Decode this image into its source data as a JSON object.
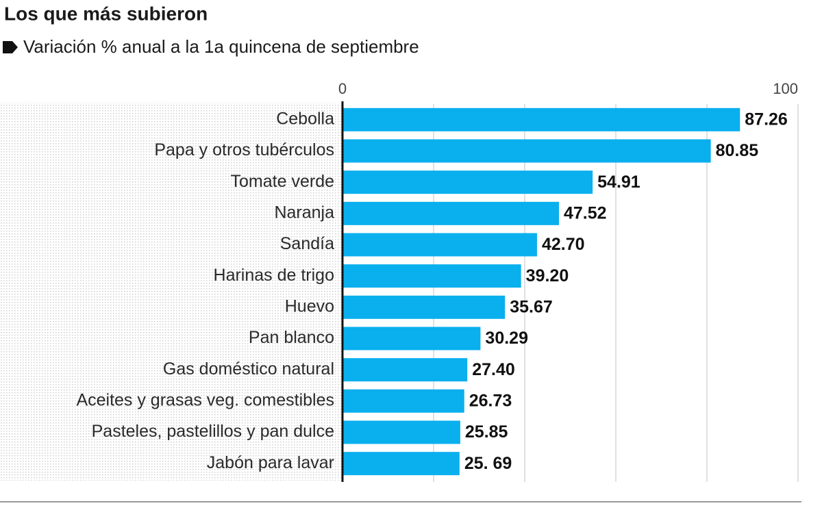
{
  "chart_data": {
    "type": "barh",
    "title": "Los que más subieron",
    "subtitle": "Variación % anual a la 1a quincena de septiembre",
    "categories": [
      "Cebolla",
      "Papa y otros tubérculos",
      "Tomate verde",
      "Naranja",
      "Sandía",
      "Harinas de trigo",
      "Huevo",
      "Pan blanco",
      "Gas doméstico natural",
      "Aceites y grasas veg. comestibles",
      "Pasteles, pastelillos y pan dulce",
      "Jabón para lavar"
    ],
    "values": [
      87.26,
      80.85,
      54.91,
      47.52,
      42.7,
      39.2,
      35.67,
      30.29,
      27.4,
      26.73,
      25.85,
      25.69
    ],
    "value_labels": [
      "87.26",
      "80.85",
      "54.91",
      "47.52",
      "42.70",
      "39.20",
      "35.67",
      "30.29",
      "27.40",
      "26.73",
      "25.85",
      "25. 69"
    ],
    "color": "#0aafee",
    "xlim": [
      0,
      100
    ],
    "xticks": [
      0,
      100
    ],
    "gridlines": [
      20,
      40,
      60,
      80,
      100
    ]
  }
}
